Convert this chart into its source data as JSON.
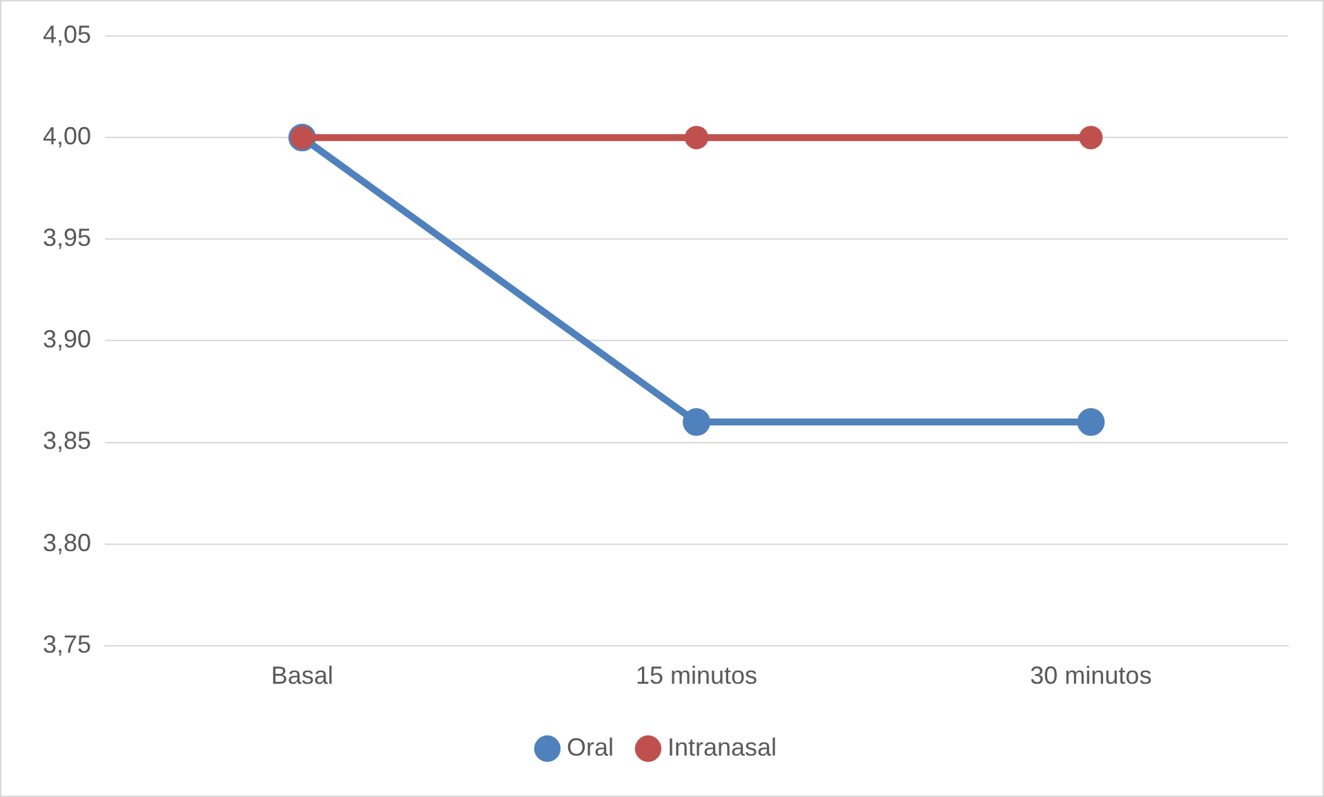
{
  "chart_data": {
    "type": "line",
    "categories": [
      "Basal",
      "15 minutos",
      "30 minutos"
    ],
    "series": [
      {
        "name": "Oral",
        "color": "#4f81bd",
        "values": [
          4.0,
          3.86,
          3.86
        ]
      },
      {
        "name": "Intranasal",
        "color": "#c0504d",
        "values": [
          4.0,
          4.0,
          4.0
        ]
      }
    ],
    "ylim": [
      3.75,
      4.05
    ],
    "yticks": [
      {
        "value": 3.75,
        "label": "3,75"
      },
      {
        "value": 3.8,
        "label": "3,80"
      },
      {
        "value": 3.85,
        "label": "3,85"
      },
      {
        "value": 3.9,
        "label": "3,90"
      },
      {
        "value": 3.95,
        "label": "3,95"
      },
      {
        "value": 4.0,
        "label": "4,00"
      },
      {
        "value": 4.05,
        "label": "4,05"
      }
    ],
    "grid": "y",
    "legend": "bottom",
    "marker": "circle",
    "line_style": "solid"
  }
}
